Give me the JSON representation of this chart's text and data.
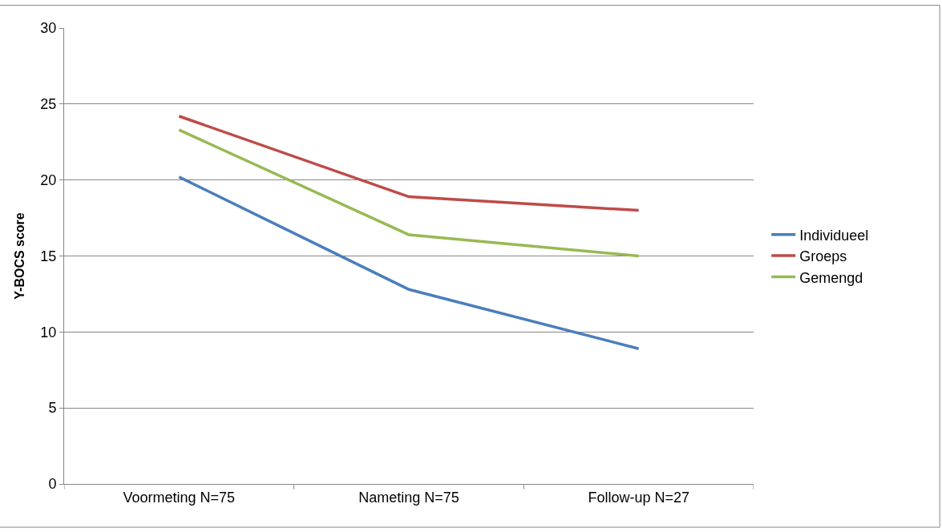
{
  "chart_data": {
    "type": "line",
    "ylabel": "Y-BOCS score",
    "categories": [
      "Voormeting N=75",
      "Nameting N=75",
      "Follow-up N=27"
    ],
    "series": [
      {
        "name": "Individueel",
        "color": "#4a7ebb",
        "values": [
          20.2,
          12.8,
          8.9
        ]
      },
      {
        "name": "Groeps",
        "color": "#be4b48",
        "values": [
          24.2,
          18.9,
          18.0
        ]
      },
      {
        "name": "Gemengd",
        "color": "#98b954",
        "values": [
          23.3,
          16.4,
          15.0
        ]
      }
    ],
    "ylim": [
      0,
      30
    ],
    "yticks": [
      0,
      5,
      10,
      15,
      20,
      25,
      30
    ],
    "grid": "y",
    "legend": "right",
    "marker": "none",
    "line_style": "solid"
  }
}
